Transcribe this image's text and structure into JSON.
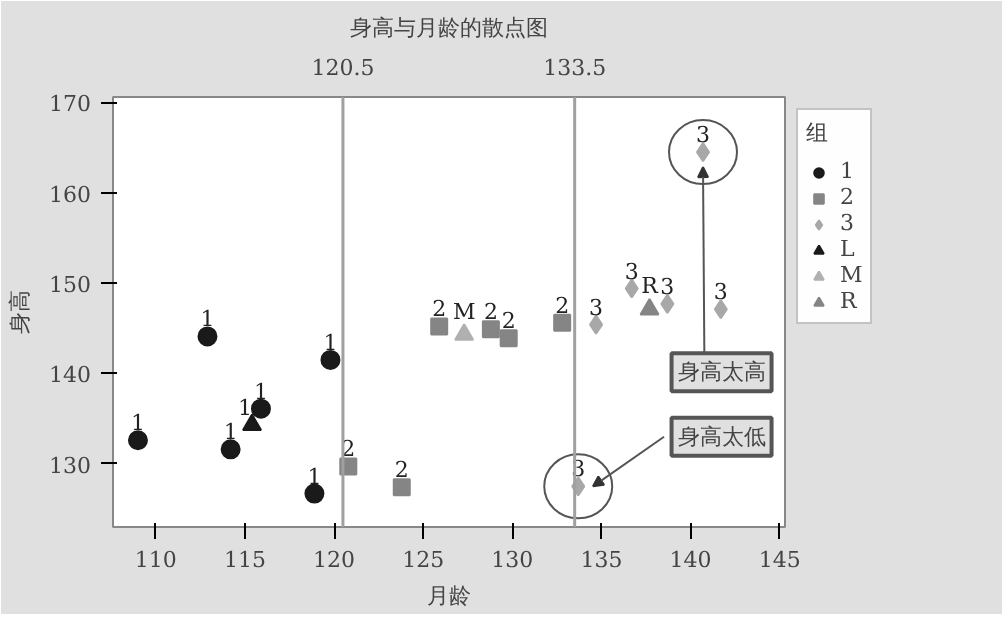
{
  "chart_data": {
    "type": "scatter",
    "title": "身高与月龄的散点图",
    "xlabel": "月龄",
    "ylabel": "身高",
    "legend_title": "组",
    "xlim": [
      107.6,
      145.3
    ],
    "ylim": [
      123.0,
      170.6
    ],
    "xticks": [
      110,
      115,
      120,
      125,
      130,
      135,
      140,
      145
    ],
    "yticks": [
      130,
      140,
      150,
      160,
      170
    ],
    "grid": false,
    "legend": "right",
    "ref_lines": [
      {
        "axis": "x",
        "value": 120.5,
        "label": "120.5",
        "color": "#a0a0a0"
      },
      {
        "axis": "x",
        "value": 133.5,
        "label": "133.5",
        "color": "#a0a0a0"
      }
    ],
    "annotations": [
      {
        "text": "1",
        "x": 109.0,
        "y": 132.6
      },
      {
        "text": "1",
        "x": 112.9,
        "y": 144.1
      },
      {
        "text": "1",
        "x": 114.2,
        "y": 131.6
      },
      {
        "text": "1",
        "x": 115.9,
        "y": 136.1
      },
      {
        "text": "1",
        "x": 119.8,
        "y": 141.5
      },
      {
        "text": "1",
        "x": 118.9,
        "y": 126.7
      },
      {
        "text": "2",
        "x": 120.8,
        "y": 129.7
      },
      {
        "text": "2",
        "x": 123.8,
        "y": 127.4
      },
      {
        "text": "2",
        "x": 125.9,
        "y": 145.2
      },
      {
        "text": "2",
        "x": 128.8,
        "y": 144.9
      },
      {
        "text": "2",
        "x": 129.8,
        "y": 143.9
      },
      {
        "text": "2",
        "x": 132.8,
        "y": 145.6
      },
      {
        "text": "3",
        "x": 140.7,
        "y": 164.5
      },
      {
        "text": "3",
        "x": 134.7,
        "y": 145.4
      },
      {
        "text": "3",
        "x": 136.7,
        "y": 149.4
      },
      {
        "text": "3",
        "x": 138.7,
        "y": 147.7
      },
      {
        "text": "3",
        "x": 141.7,
        "y": 147.1
      },
      {
        "text": "3",
        "x": 133.7,
        "y": 127.5
      },
      {
        "text": "1",
        "x": 115.0,
        "y": 134.3
      },
      {
        "text": "M",
        "x": 127.3,
        "y": 144.3
      },
      {
        "text": "R",
        "x": 137.7,
        "y": 147.1
      },
      {
        "text": "身高太高",
        "x": 140.7,
        "y": 164.5
      },
      {
        "text": "身高太低",
        "x": 133.7,
        "y": 127.5
      }
    ],
    "series": [
      {
        "name": "1",
        "color": "#1a1a1a",
        "marker": "circle",
        "x": [
          109.0,
          112.9,
          114.2,
          115.9,
          119.8,
          118.9
        ],
        "values": [
          132.6,
          144.1,
          131.6,
          136.1,
          141.5,
          126.7
        ]
      },
      {
        "name": "2",
        "color": "#858585",
        "marker": "square",
        "x": [
          120.8,
          123.8,
          125.9,
          128.8,
          129.8,
          132.8
        ],
        "values": [
          129.7,
          127.4,
          145.2,
          144.9,
          143.9,
          145.6
        ]
      },
      {
        "name": "3",
        "color": "#a8a8a8",
        "marker": "diamond",
        "x": [
          140.7,
          134.7,
          136.7,
          138.7,
          141.7,
          133.7
        ],
        "values": [
          164.5,
          145.4,
          149.4,
          147.7,
          147.1,
          127.5
        ]
      },
      {
        "name": "L",
        "color": "#1a1a1a",
        "marker": "triangle",
        "x": [
          115.4
        ],
        "values": [
          134.3
        ]
      },
      {
        "name": "M",
        "color": "#b0b0b0",
        "marker": "triangle",
        "x": [
          127.3
        ],
        "values": [
          144.3
        ]
      },
      {
        "name": "R",
        "color": "#858585",
        "marker": "triangle",
        "x": [
          137.7
        ],
        "values": [
          147.1
        ]
      }
    ]
  }
}
